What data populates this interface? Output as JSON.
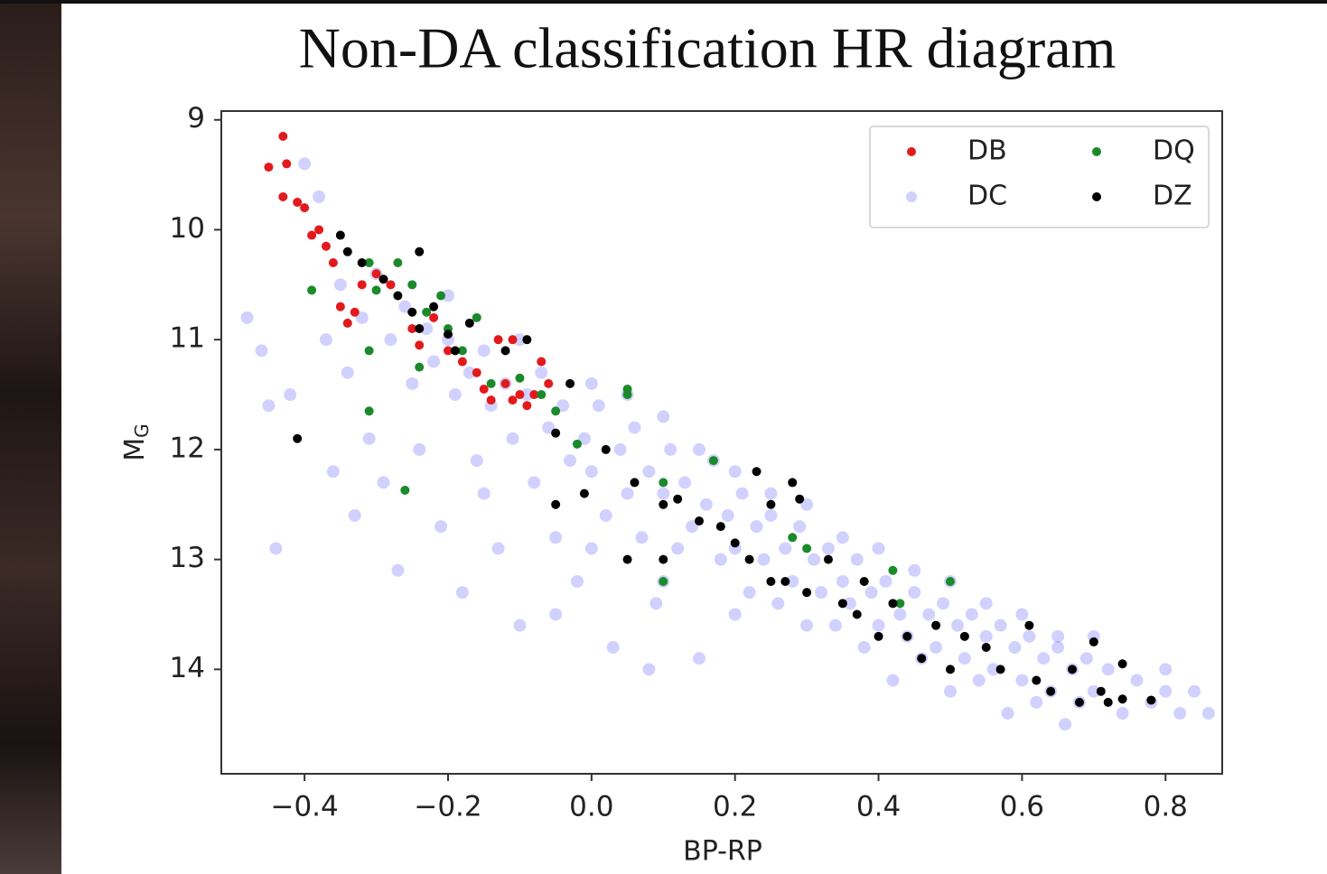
{
  "chart_data": {
    "type": "scatter",
    "title": "Non-DA classification HR diagram",
    "x_label": "BP-RP",
    "y_label": {
      "main": "M",
      "sub": "G"
    },
    "xlim": [
      -0.516,
      0.879
    ],
    "ylim": [
      14.95,
      8.92
    ],
    "xticks": [
      {
        "value": -0.4,
        "label": "−0.4"
      },
      {
        "value": -0.2,
        "label": "−0.2"
      },
      {
        "value": 0,
        "label": "0.0"
      },
      0.2,
      0.4,
      0.6,
      0.8
    ],
    "yticks": [
      9,
      10,
      11,
      12,
      13,
      14
    ],
    "grid": false,
    "legend": "upper right",
    "legend_columns": 2,
    "series": [
      {
        "name": "DB",
        "color": "#e31a1c",
        "opacity": 1,
        "x": [
          -0.45,
          -0.43,
          -0.425,
          -0.43,
          -0.41,
          -0.4,
          -0.38,
          -0.39,
          -0.37,
          -0.36,
          -0.35,
          -0.33,
          -0.34,
          -0.32,
          -0.3,
          -0.28,
          -0.25,
          -0.24,
          -0.22,
          -0.2,
          -0.18,
          -0.16,
          -0.15,
          -0.14,
          -0.12,
          -0.11,
          -0.1,
          -0.09,
          -0.08,
          -0.07,
          -0.06,
          -0.13,
          -0.11
        ],
        "values": [
          9.43,
          9.15,
          9.4,
          9.7,
          9.75,
          9.8,
          10.0,
          10.05,
          10.15,
          10.3,
          10.7,
          10.75,
          10.85,
          10.5,
          10.4,
          10.5,
          10.9,
          11.05,
          10.8,
          11.1,
          11.2,
          11.3,
          11.45,
          11.55,
          11.4,
          11.55,
          11.5,
          11.6,
          11.5,
          11.2,
          11.4,
          11.0,
          11.0
        ]
      },
      {
        "name": "DC",
        "color": "#0000ff",
        "opacity": 0.18,
        "x": [
          -0.48,
          -0.46,
          -0.45,
          -0.44,
          -0.42,
          -0.4,
          -0.38,
          -0.37,
          -0.36,
          -0.35,
          -0.34,
          -0.33,
          -0.32,
          -0.31,
          -0.3,
          -0.29,
          -0.28,
          -0.27,
          -0.26,
          -0.25,
          -0.24,
          -0.23,
          -0.22,
          -0.21,
          -0.2,
          -0.19,
          -0.18,
          -0.17,
          -0.16,
          -0.15,
          -0.14,
          -0.13,
          -0.12,
          -0.11,
          -0.1,
          -0.09,
          -0.08,
          -0.07,
          -0.06,
          -0.05,
          -0.04,
          -0.03,
          -0.02,
          -0.01,
          0,
          0.01,
          0.02,
          0.03,
          0.04,
          0.05,
          0.06,
          0.07,
          0.08,
          0.09,
          0.1,
          0.11,
          0.12,
          0.13,
          0.14,
          0.15,
          0.16,
          0.17,
          0.18,
          0.19,
          0.2,
          0.21,
          0.22,
          0.23,
          0.24,
          0.25,
          0.26,
          0.27,
          0.28,
          0.29,
          0.3,
          0.31,
          0.32,
          0.33,
          0.34,
          0.35,
          0.36,
          0.37,
          0.38,
          0.39,
          0.4,
          0.41,
          0.42,
          0.43,
          0.44,
          0.45,
          0.46,
          0.47,
          0.48,
          0.49,
          0.5,
          0.51,
          0.52,
          0.53,
          0.54,
          0.55,
          0.56,
          0.57,
          0.58,
          0.59,
          0.6,
          0.61,
          0.62,
          0.63,
          0.64,
          0.65,
          0.66,
          0.67,
          0.68,
          0.69,
          0.7,
          0.72,
          0.74,
          0.76,
          0.78,
          0.8,
          0.82,
          0.84,
          0.86,
          -0.1,
          0.05,
          0.15,
          0.25,
          0.35,
          0.45,
          0.55,
          0.65,
          -0.2,
          0,
          0.1,
          0.2,
          0.3,
          0.4,
          0.5,
          0.6,
          0.7,
          0.8,
          -0.15,
          0,
          0.1,
          0.2,
          -0.05,
          0.08
        ],
        "values": [
          10.8,
          11.1,
          11.6,
          12.9,
          11.5,
          9.4,
          9.7,
          11.0,
          12.2,
          10.5,
          11.3,
          12.6,
          10.8,
          11.9,
          10.4,
          12.3,
          11.0,
          13.1,
          10.7,
          11.4,
          12.0,
          10.9,
          11.2,
          12.7,
          11.0,
          11.5,
          13.3,
          11.3,
          12.1,
          11.1,
          11.6,
          12.9,
          11.4,
          11.9,
          13.6,
          11.5,
          12.3,
          11.3,
          11.8,
          12.8,
          11.6,
          12.1,
          13.2,
          11.9,
          12.2,
          11.6,
          12.6,
          13.8,
          12.0,
          12.4,
          11.8,
          12.8,
          12.2,
          13.4,
          12.4,
          12.0,
          12.9,
          12.3,
          12.7,
          13.9,
          12.5,
          12.1,
          13.0,
          12.6,
          12.9,
          12.4,
          13.3,
          12.7,
          13.0,
          12.6,
          13.4,
          12.9,
          13.2,
          12.7,
          13.6,
          13.0,
          13.3,
          12.9,
          13.6,
          13.2,
          13.4,
          13.0,
          13.8,
          13.3,
          13.6,
          13.2,
          14.1,
          13.5,
          13.7,
          13.3,
          13.9,
          13.5,
          13.8,
          13.4,
          14.2,
          13.6,
          13.9,
          13.5,
          14.1,
          13.7,
          14.0,
          13.6,
          14.4,
          13.8,
          14.1,
          13.7,
          14.3,
          13.9,
          14.2,
          13.8,
          14.5,
          14.0,
          14.3,
          13.9,
          14.2,
          14.0,
          14.4,
          14.1,
          14.3,
          14.2,
          14.4,
          14.2,
          14.4,
          11.0,
          11.5,
          12.0,
          12.4,
          12.8,
          13.1,
          13.4,
          13.7,
          10.6,
          11.4,
          11.7,
          12.2,
          12.5,
          12.9,
          13.2,
          13.5,
          13.7,
          14.0,
          12.4,
          12.9,
          13.2,
          13.5,
          13.5,
          14.0
        ]
      },
      {
        "name": "DQ",
        "color": "#1a8a2a",
        "opacity": 1,
        "x": [
          -0.39,
          -0.31,
          -0.3,
          -0.27,
          -0.25,
          -0.23,
          -0.21,
          -0.2,
          -0.18,
          -0.16,
          -0.31,
          -0.31,
          -0.26,
          -0.14,
          -0.1,
          -0.07,
          -0.05,
          -0.02,
          0.05,
          0.1,
          0.17,
          0.1,
          0.28,
          0.3,
          0.42,
          0.43,
          0.5,
          0.05,
          -0.24
        ],
        "values": [
          10.55,
          10.3,
          10.55,
          10.3,
          10.5,
          10.75,
          10.6,
          10.9,
          11.1,
          10.8,
          11.1,
          11.65,
          12.37,
          11.4,
          11.35,
          11.5,
          11.65,
          11.95,
          11.5,
          12.3,
          12.1,
          13.2,
          12.8,
          12.9,
          13.1,
          13.4,
          13.2,
          11.45,
          11.25
        ]
      },
      {
        "name": "DZ",
        "color": "#000000",
        "opacity": 1,
        "x": [
          -0.41,
          -0.35,
          -0.34,
          -0.32,
          -0.29,
          -0.27,
          -0.25,
          -0.24,
          -0.22,
          -0.2,
          -0.19,
          -0.17,
          -0.24,
          -0.12,
          -0.09,
          -0.03,
          -0.05,
          -0.01,
          -0.05,
          0.02,
          0.06,
          0.1,
          0.12,
          0.15,
          0.18,
          0.2,
          0.23,
          0.25,
          0.22,
          0.25,
          0.28,
          0.29,
          0.27,
          0.3,
          0.33,
          0.35,
          0.37,
          0.38,
          0.4,
          0.42,
          0.44,
          0.46,
          0.48,
          0.5,
          0.52,
          0.55,
          0.57,
          0.61,
          0.62,
          0.64,
          0.67,
          0.68,
          0.7,
          0.71,
          0.72,
          0.74,
          0.74,
          0.78,
          0.1,
          0.05
        ],
        "values": [
          11.9,
          10.05,
          10.2,
          10.3,
          10.45,
          10.6,
          10.75,
          10.9,
          10.7,
          10.95,
          11.1,
          10.85,
          10.2,
          11.1,
          11.0,
          11.4,
          11.85,
          12.4,
          12.5,
          12.0,
          12.3,
          12.5,
          12.45,
          12.65,
          12.7,
          12.85,
          12.2,
          12.5,
          13.0,
          13.2,
          12.3,
          12.45,
          13.2,
          13.3,
          13.0,
          13.4,
          13.5,
          13.2,
          13.7,
          13.4,
          13.7,
          13.9,
          13.6,
          14.0,
          13.7,
          13.8,
          14.0,
          13.6,
          14.1,
          14.2,
          14.0,
          14.3,
          13.75,
          14.2,
          14.3,
          13.95,
          14.27,
          14.28,
          13.0,
          13.0
        ]
      }
    ]
  }
}
